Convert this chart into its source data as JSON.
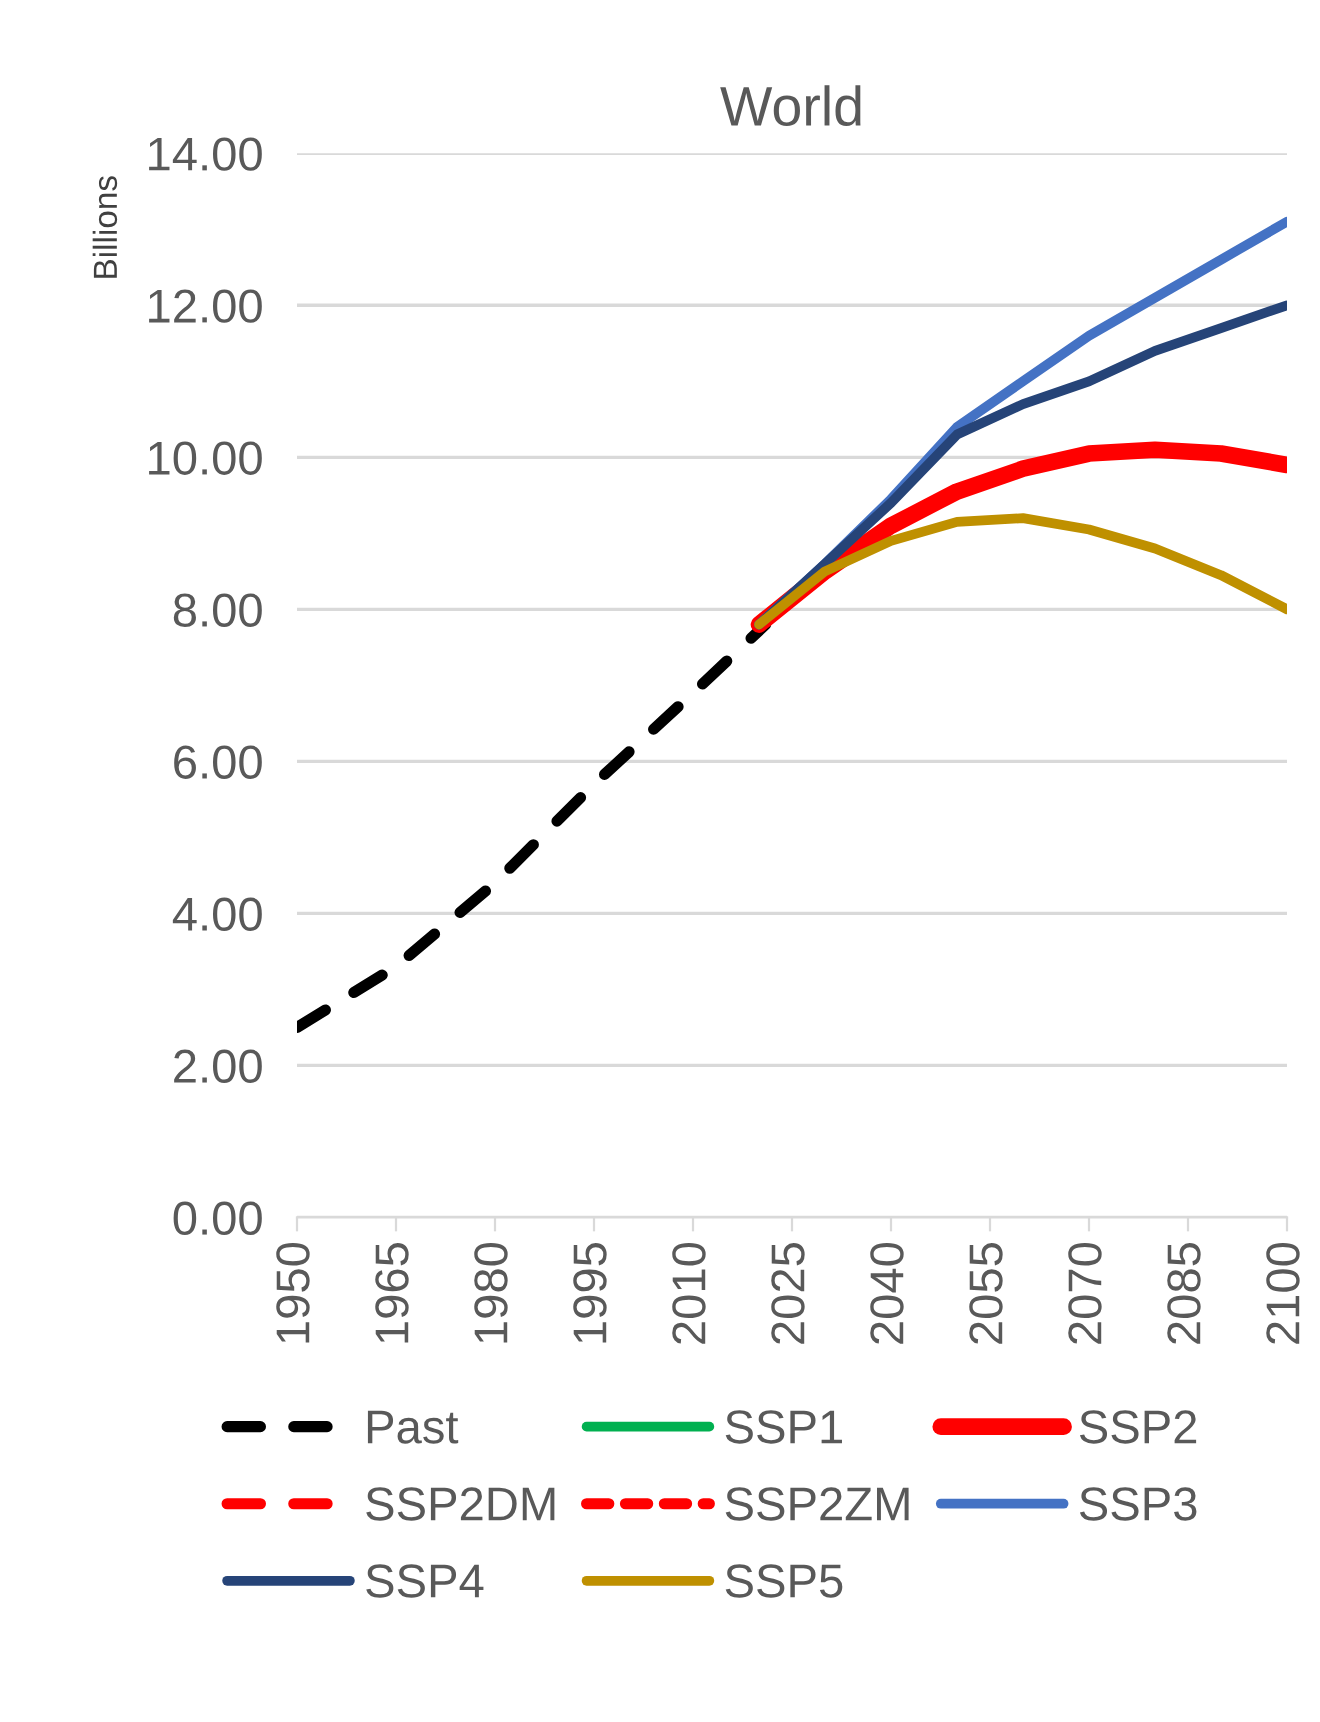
{
  "chart_data": {
    "type": "line",
    "title": "World",
    "ylabel": "Billions",
    "xlim": [
      1950,
      2100
    ],
    "xticks": [
      1950,
      1965,
      1980,
      1995,
      2010,
      2025,
      2040,
      2055,
      2070,
      2085,
      2100
    ],
    "ylim": [
      0,
      14
    ],
    "yticks": [
      {
        "value": 0,
        "label": "0.00"
      },
      {
        "value": 2,
        "label": "2.00"
      },
      {
        "value": 4,
        "label": "4.00"
      },
      {
        "value": 6,
        "label": "6.00"
      },
      {
        "value": 8,
        "label": "8.00"
      },
      {
        "value": 10,
        "label": "10.00"
      },
      {
        "value": 12,
        "label": "12.00"
      },
      {
        "value": 14,
        "label": "14.00"
      }
    ],
    "grid": "y",
    "legend": "bottom",
    "marker": "none",
    "series": [
      {
        "name": "Past",
        "color": "#000000",
        "line_style": "dashed",
        "x": [
          1950,
          1965,
          1980,
          1995,
          2010,
          2021
        ],
        "values": [
          2.5,
          3.3,
          4.4,
          5.7,
          6.9,
          7.8
        ]
      },
      {
        "name": "SSP1",
        "color": "#00b050",
        "line_style": "solid"
      },
      {
        "name": "SSP2",
        "color": "#ff0000",
        "line_style": "solid",
        "x": [
          2020,
          2030,
          2040,
          2050,
          2060,
          2070,
          2080,
          2090,
          2100
        ],
        "values": [
          7.8,
          8.5,
          9.1,
          9.55,
          9.85,
          10.05,
          10.1,
          10.05,
          9.9
        ]
      },
      {
        "name": "SSP2DM",
        "color": "#ff0000",
        "line_style": "dashed"
      },
      {
        "name": "SSP2ZM",
        "color": "#ff0000",
        "line_style": "dotted"
      },
      {
        "name": "SSP3",
        "color": "#4472c4",
        "line_style": "solid",
        "x": [
          2020,
          2030,
          2040,
          2050,
          2060,
          2070,
          2080,
          2090,
          2100
        ],
        "values": [
          7.8,
          8.6,
          9.45,
          10.4,
          11.0,
          11.6,
          12.1,
          12.6,
          13.1
        ]
      },
      {
        "name": "SSP4",
        "color": "#264478",
        "line_style": "solid",
        "x": [
          2020,
          2030,
          2040,
          2050,
          2060,
          2070,
          2080,
          2090,
          2100
        ],
        "values": [
          7.8,
          8.6,
          9.4,
          10.3,
          10.7,
          11.0,
          11.4,
          11.7,
          12.0
        ]
      },
      {
        "name": "SSP5",
        "color": "#bf9000",
        "line_style": "solid",
        "x": [
          2020,
          2030,
          2040,
          2050,
          2060,
          2070,
          2080,
          2090,
          2100
        ],
        "values": [
          7.8,
          8.5,
          8.9,
          9.15,
          9.2,
          9.05,
          8.8,
          8.45,
          8.0
        ]
      }
    ]
  }
}
